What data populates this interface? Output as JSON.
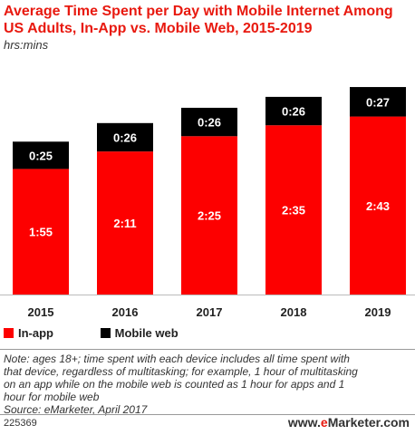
{
  "title": "Average Time Spent per Day with Mobile Internet Among US Adults, In-App vs. Mobile Web, 2015-2019",
  "subtitle": "hrs:mins",
  "colors": {
    "in_app": "#fd0000",
    "mobile_web": "#000000",
    "title": "#e8190f"
  },
  "legend": {
    "in_app": "In-app",
    "mobile_web": "Mobile web"
  },
  "note_lines": [
    "Note: ages 18+; time spent with each device includes all time spent with",
    "that device, regardless of multitasking; for example, 1 hour of multitasking",
    "on an app while on the mobile web is counted as 1 hour for apps and 1",
    "hour for mobile web"
  ],
  "source": "Source: eMarketer, April 2017",
  "footer_id": "225369",
  "brand": {
    "prefix": "www.",
    "e": "e",
    "rest": "Marketer",
    "suffix": ".com"
  },
  "chart_data": {
    "type": "bar",
    "stacked": true,
    "categories": [
      "2015",
      "2016",
      "2017",
      "2018",
      "2019"
    ],
    "series": [
      {
        "name": "In-app",
        "values": [
          115,
          131,
          145,
          155,
          163
        ],
        "labels": [
          "1:55",
          "2:11",
          "2:25",
          "2:35",
          "2:43"
        ]
      },
      {
        "name": "Mobile web",
        "values": [
          25,
          26,
          26,
          26,
          27
        ],
        "labels": [
          "0:25",
          "0:26",
          "0:26",
          "0:26",
          "0:27"
        ]
      }
    ],
    "ylim": [
      0,
      190
    ],
    "legend_position": "bottom-left"
  }
}
